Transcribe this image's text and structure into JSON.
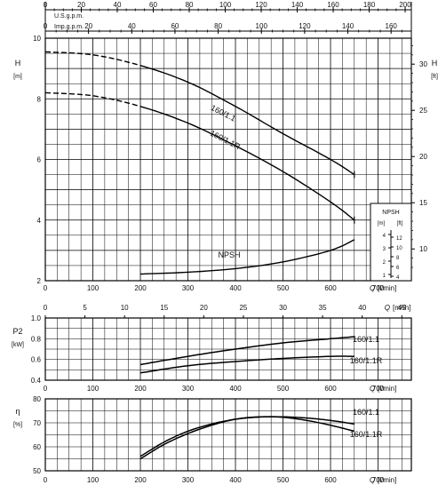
{
  "chart_data": [
    {
      "type": "line",
      "panel": "head",
      "ylabel_left": "H",
      "ylabel_left_unit": "[m]",
      "ylabel_right": "H",
      "ylabel_right_unit": "[ft]",
      "xlabel": "Q",
      "xlabel_unit": "[l/min]",
      "top_axis_1_label": "U.S.g.p.m.",
      "top_axis_1_ticks": [
        "0",
        "20",
        "40",
        "60",
        "80",
        "100",
        "120",
        "140",
        "160",
        "180",
        "200"
      ],
      "top_axis_2_label": "Imp.g.p.m.",
      "top_axis_2_ticks": [
        "0",
        "20",
        "40",
        "60",
        "80",
        "100",
        "120",
        "140",
        "160"
      ],
      "x_ticks": [
        "0",
        "100",
        "200",
        "300",
        "400",
        "500",
        "600",
        "700"
      ],
      "xlim": [
        0,
        770
      ],
      "y_ticks": [
        "2",
        "4",
        "6",
        "8",
        "10"
      ],
      "ylim": [
        2,
        10
      ],
      "y_right_ticks": [
        "10",
        "15",
        "20",
        "25",
        "30"
      ],
      "grid": true,
      "series": [
        {
          "name": "160/1.1",
          "dashed_to_x": 200,
          "x": [
            0,
            100,
            200,
            300,
            400,
            500,
            600,
            650
          ],
          "y": [
            9.55,
            9.45,
            9.1,
            8.55,
            7.75,
            6.85,
            6.0,
            5.5
          ]
        },
        {
          "name": "160/1.1R",
          "dashed_to_x": 200,
          "x": [
            0,
            100,
            200,
            300,
            400,
            500,
            600,
            650
          ],
          "y": [
            8.2,
            8.1,
            7.75,
            7.2,
            6.45,
            5.6,
            4.6,
            4.0
          ]
        },
        {
          "name": "NPSH",
          "x": [
            200,
            300,
            400,
            500,
            600,
            650
          ],
          "y": [
            2.22,
            2.28,
            2.4,
            2.62,
            3.0,
            3.35
          ]
        }
      ],
      "npsh_inset": {
        "title": "NPSH",
        "unit_m": "[m]",
        "unit_ft": "[ft]",
        "m_ticks": [
          "4",
          "3",
          "2",
          "1"
        ],
        "ft_ticks": [
          "12",
          "10",
          "8",
          "6",
          "4"
        ]
      }
    },
    {
      "type": "line",
      "panel": "power",
      "ylabel": "P2",
      "ylabel_unit": "[kW]",
      "xlabel": "Q",
      "xlabel_unit": "[l/min]",
      "top_axis_label": "Q",
      "top_axis_unit": "[m³/h]",
      "top_axis_ticks": [
        "0",
        "5",
        "10",
        "15",
        "20",
        "25",
        "30",
        "35",
        "40",
        "45"
      ],
      "x_ticks": [
        "0",
        "100",
        "200",
        "300",
        "400",
        "500",
        "600",
        "700"
      ],
      "xlim": [
        0,
        770
      ],
      "y_ticks": [
        "0.4",
        "0.6",
        "0.8",
        "1.0"
      ],
      "ylim": [
        0.4,
        1.0
      ],
      "grid": true,
      "series": [
        {
          "name": "160/1.1",
          "x": [
            200,
            300,
            400,
            500,
            600,
            650
          ],
          "y": [
            0.55,
            0.63,
            0.7,
            0.76,
            0.8,
            0.82
          ]
        },
        {
          "name": "160/1.1R",
          "x": [
            200,
            300,
            400,
            500,
            600,
            650
          ],
          "y": [
            0.47,
            0.54,
            0.58,
            0.61,
            0.63,
            0.63
          ]
        }
      ]
    },
    {
      "type": "line",
      "panel": "efficiency",
      "ylabel": "η",
      "ylabel_unit": "[%]",
      "xlabel": "Q",
      "xlabel_unit": "[l/min]",
      "x_ticks": [
        "0",
        "100",
        "200",
        "300",
        "400",
        "500",
        "600",
        "700"
      ],
      "xlim": [
        0,
        770
      ],
      "y_ticks": [
        "50",
        "60",
        "70",
        "80"
      ],
      "ylim": [
        50,
        80
      ],
      "grid": true,
      "series": [
        {
          "name": "160/1.1",
          "x": [
            200,
            250,
            300,
            350,
            400,
            450,
            500,
            550,
            600,
            650
          ],
          "y": [
            56,
            62,
            66.5,
            69.5,
            71.5,
            72.4,
            72.5,
            72.0,
            71.0,
            69.5
          ]
        },
        {
          "name": "160/1.1R",
          "x": [
            200,
            250,
            300,
            350,
            400,
            450,
            500,
            550,
            600,
            650
          ],
          "y": [
            55,
            61,
            65.5,
            69,
            71.5,
            72.5,
            72.3,
            71.0,
            69.0,
            66.5
          ]
        }
      ]
    }
  ]
}
